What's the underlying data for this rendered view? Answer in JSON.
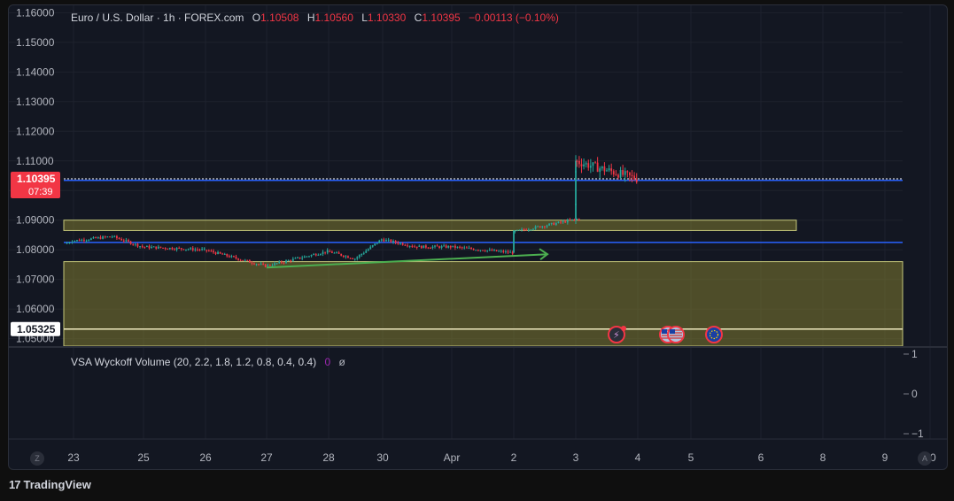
{
  "header": {
    "symbol": "Euro / U.S. Dollar · 1h · FOREX.com",
    "o_label": "O",
    "o_value": "1.10508",
    "h_label": "H",
    "h_value": "1.10560",
    "l_label": "L",
    "l_value": "1.10330",
    "c_label": "C",
    "c_value": "1.10395",
    "change": "−0.00113 (−0.10%)"
  },
  "indicator": {
    "label": "VSA Wyckoff Volume (20, 2.2, 1.8, 1.2, 0.8, 0.4, 0.4)",
    "value": "0",
    "eye_icon": "eye-icon"
  },
  "footer": {
    "brand": "TradingView",
    "z_button": "Z",
    "a_button": "A"
  },
  "colors": {
    "up": "#26a69a",
    "down": "#f23645",
    "zone": "#807a2f",
    "blue_line": "#2962ff",
    "arrow": "#4caf50",
    "bg": "#131722"
  },
  "chart_data": {
    "type": "candlestick",
    "title": "Euro / U.S. Dollar · 1h · FOREX.com",
    "ylim": [
      1.0475,
      1.1625
    ],
    "y_ticks": [
      "1.16000",
      "1.15000",
      "1.14000",
      "1.13000",
      "1.12000",
      "1.11000",
      "1.10000",
      "1.09000",
      "1.08000",
      "1.07000",
      "1.06000",
      "1.05000"
    ],
    "x_ticks": [
      "23",
      "25",
      "26",
      "27",
      "28",
      "30",
      "Apr",
      "2",
      "3",
      "4",
      "5",
      "6",
      "8",
      "9",
      "10"
    ],
    "current_price": {
      "value": "1.10395",
      "countdown": "07:39"
    },
    "levels": [
      {
        "value": "1.10343",
        "style": "blue-line",
        "price_tag": true
      },
      {
        "value": "1.08250",
        "style": "blue-line",
        "price_tag": false
      },
      {
        "value": "1.05325",
        "style": "white-line",
        "price_tag": true
      }
    ],
    "zones": [
      {
        "from": 1.0865,
        "to": 1.09,
        "x_end_tick": "6"
      },
      {
        "from": 1.0475,
        "to": 1.076,
        "x_end_tick": "10"
      }
    ],
    "arrow": {
      "from": [
        "27",
        1.074
      ],
      "to": [
        "2",
        1.0785
      ]
    },
    "path": [
      [
        "22",
        1.082
      ],
      [
        "23",
        1.083
      ],
      [
        "24",
        1.0845
      ],
      [
        "25",
        1.081
      ],
      [
        "26",
        1.08
      ],
      [
        "27",
        1.0745
      ],
      [
        "28",
        1.0795
      ],
      [
        "29",
        1.077
      ],
      [
        "30",
        1.0835
      ],
      [
        "31",
        1.081
      ],
      [
        "Apr",
        1.081
      ],
      [
        "2",
        1.079
      ],
      [
        "2",
        1.086
      ],
      [
        "3",
        1.0905
      ],
      [
        "3",
        1.095
      ],
      [
        "3",
        1.106
      ],
      [
        "3",
        1.11
      ],
      [
        "4",
        1.104
      ]
    ],
    "indicator_panel": {
      "name": "VSA Wyckoff Volume",
      "y_ticks": [
        "1",
        "0",
        "−1"
      ]
    },
    "events": [
      "flash-event-icon",
      "us-flag-icon",
      "us-flag-icon",
      "eu-flag-icon"
    ]
  }
}
